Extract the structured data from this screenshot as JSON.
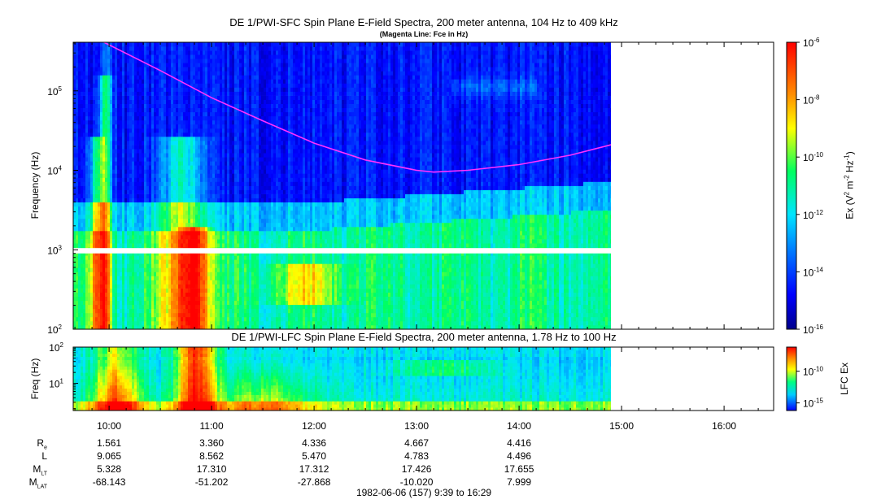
{
  "chart_data": [
    {
      "type": "heatmap",
      "title": "DE 1/PWI-SFC  Spin Plane E-Field Spectra, 200 meter antenna, 104 Hz to 409 kHz",
      "subtitle": "(Magenta Line: Fce in Hz)",
      "ylabel": "Frequency (Hz)",
      "yscale": "log",
      "ylim": [
        100,
        409000
      ],
      "y_ticks": [
        {
          "value": 100,
          "base": "10",
          "exp": "2"
        },
        {
          "value": 1000,
          "base": "10",
          "exp": "3"
        },
        {
          "value": 10000,
          "base": "10",
          "exp": "4"
        },
        {
          "value": 100000,
          "base": "10",
          "exp": "5"
        }
      ],
      "data_coverage": {
        "start": "09:39",
        "end": "14:54"
      },
      "data_gap_hz": [
        900,
        1050
      ],
      "colorbar": {
        "label_prefix": "Ex (V",
        "label_sup1": "2",
        "label_mid": " m",
        "label_sup2": "-2",
        "label_mid2": " Hz",
        "label_sup3": "-1",
        "label_suffix": ")",
        "scale": "log",
        "range": [
          1e-16,
          1e-06
        ],
        "ticks": [
          {
            "base": "10",
            "exp": "-6"
          },
          {
            "base": "10",
            "exp": "-8"
          },
          {
            "base": "10",
            "exp": "-10"
          },
          {
            "base": "10",
            "exp": "-12"
          },
          {
            "base": "10",
            "exp": "-14"
          },
          {
            "base": "10",
            "exp": "-16"
          }
        ]
      },
      "fce_line": {
        "color": "#ff30ff",
        "time": [
          "09:57",
          "10:30",
          "11:00",
          "11:30",
          "12:00",
          "12:30",
          "13:00",
          "13:10",
          "13:30",
          "14:00",
          "14:30",
          "14:54"
        ],
        "freq_hz": [
          409000,
          180000,
          82000,
          42000,
          22000,
          13500,
          10000,
          9500,
          10000,
          11800,
          15500,
          21000
        ]
      }
    },
    {
      "type": "heatmap",
      "title": "DE 1/PWI-LFC  Spin Plane E-Field Spectra, 200 meter antenna, 1.78 Hz to 100 Hz",
      "ylabel": "Freq (Hz)",
      "yscale": "log",
      "ylim": [
        1.78,
        100
      ],
      "y_ticks": [
        {
          "value": 10,
          "base": "10",
          "exp": "1"
        },
        {
          "value": 100,
          "base": "10",
          "exp": "2"
        }
      ],
      "data_coverage": {
        "start": "09:39",
        "end": "14:54"
      },
      "colorbar": {
        "label": "LFC Ex",
        "ticks": [
          {
            "base": "10",
            "exp": "-10"
          },
          {
            "base": "10",
            "exp": "-15"
          }
        ]
      }
    }
  ],
  "time_axis": {
    "start_minutes": 579,
    "end_minutes": 989,
    "ticks": [
      "10:00",
      "11:00",
      "12:00",
      "13:00",
      "14:00",
      "15:00",
      "16:00"
    ]
  },
  "ephemeris": {
    "rows": [
      {
        "label": "R",
        "sub": "e",
        "values": [
          "1.561",
          "3.360",
          "4.336",
          "4.667",
          "4.416"
        ]
      },
      {
        "label": "L",
        "sub": "",
        "values": [
          "9.065",
          "8.562",
          "5.470",
          "4.783",
          "4.496"
        ]
      },
      {
        "label": "M",
        "sub": "LT",
        "values": [
          "5.328",
          "17.310",
          "17.312",
          "17.426",
          "17.655"
        ]
      },
      {
        "label": "M",
        "sub": "LAT",
        "values": [
          "-68.143",
          "-51.202",
          "-27.868",
          "-10.020",
          "7.999"
        ]
      }
    ]
  },
  "footer": "1982-06-06 (157) 9:39 to 16:29"
}
